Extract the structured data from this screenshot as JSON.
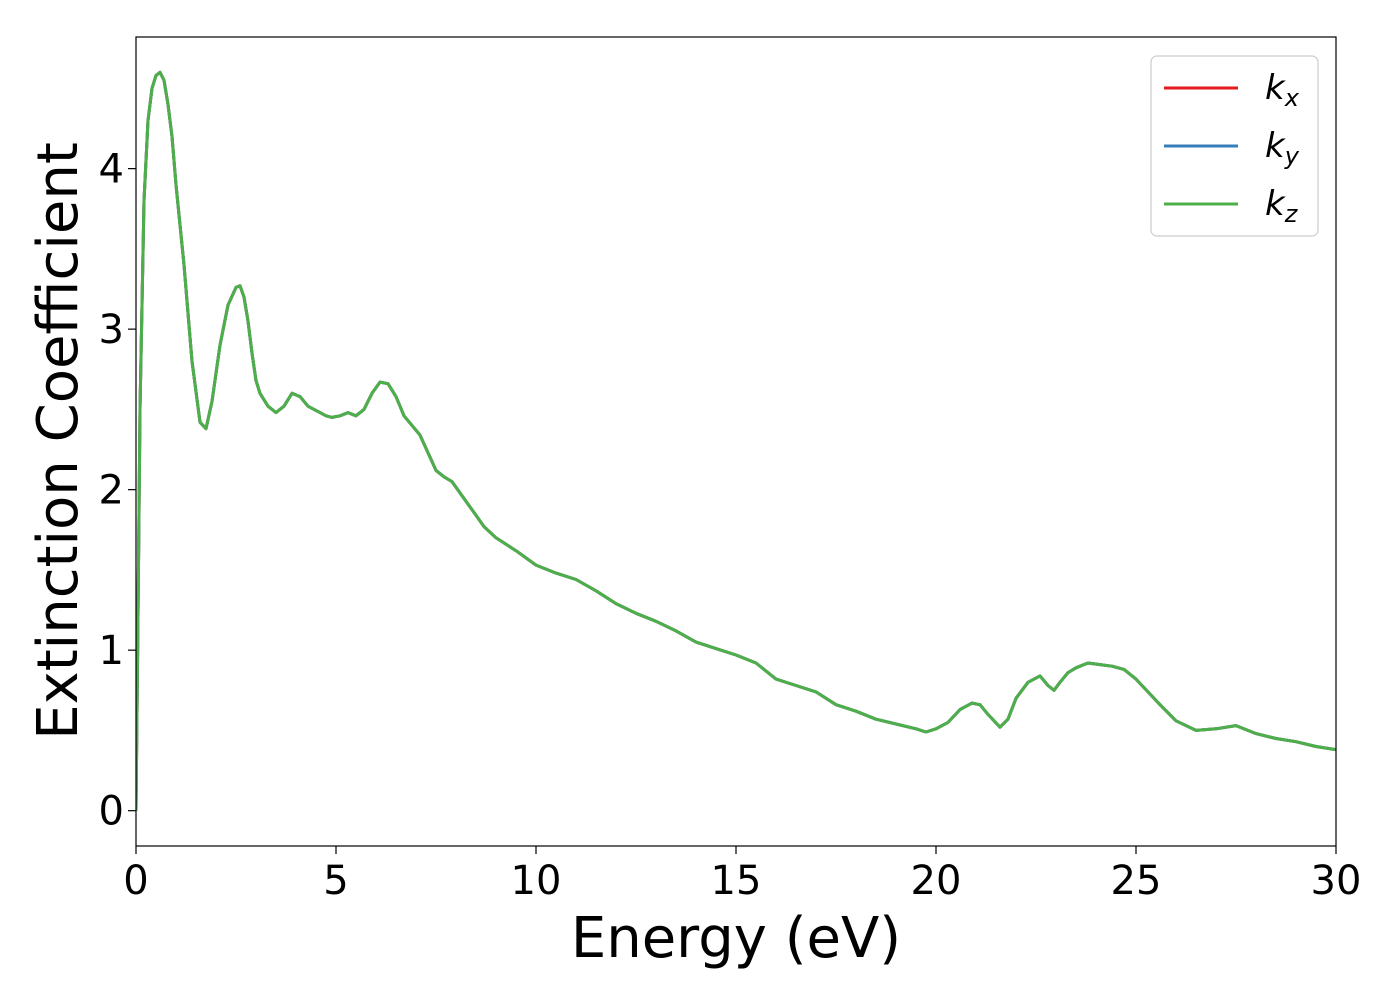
{
  "chart_data": {
    "type": "line",
    "title": "",
    "xlabel": "Energy (eV)",
    "ylabel": "Extinction Coefficient",
    "xlim": [
      0,
      30
    ],
    "ylim": [
      -0.22,
      4.82
    ],
    "xticks": [
      0,
      5,
      10,
      15,
      20,
      25,
      30
    ],
    "yticks": [
      0,
      1,
      2,
      3,
      4
    ],
    "grid": false,
    "legend_position": "top-right",
    "legend": [
      {
        "base": "k",
        "sub": "x"
      },
      {
        "base": "k",
        "sub": "y"
      },
      {
        "base": "k",
        "sub": "z"
      }
    ],
    "series": [
      {
        "name": "k_x",
        "color": "#e41a1c"
      },
      {
        "name": "k_y",
        "color": "#377eb8"
      },
      {
        "name": "k_z",
        "color": "#4daf4a"
      }
    ],
    "x": [
      0,
      0.05,
      0.1,
      0.2,
      0.3,
      0.4,
      0.5,
      0.6,
      0.7,
      0.8,
      0.9,
      1.0,
      1.2,
      1.4,
      1.6,
      1.75,
      1.9,
      2.1,
      2.3,
      2.5,
      2.6,
      2.7,
      2.8,
      2.9,
      3.0,
      3.1,
      3.2,
      3.3,
      3.5,
      3.7,
      3.9,
      4.1,
      4.3,
      4.45,
      4.6,
      4.75,
      4.9,
      5.1,
      5.3,
      5.5,
      5.7,
      5.9,
      6.1,
      6.3,
      6.5,
      6.7,
      6.9,
      7.1,
      7.3,
      7.5,
      7.7,
      7.9,
      8.1,
      8.3,
      8.5,
      8.7,
      9.0,
      9.5,
      10.0,
      10.5,
      11.0,
      11.5,
      12.0,
      12.5,
      13.0,
      13.5,
      14.0,
      14.5,
      15.0,
      15.5,
      16.0,
      16.5,
      17.0,
      17.5,
      18.0,
      18.5,
      19.0,
      19.5,
      19.75,
      20.0,
      20.3,
      20.6,
      20.9,
      21.1,
      21.3,
      21.6,
      21.8,
      22.0,
      22.3,
      22.6,
      22.8,
      22.95,
      23.1,
      23.3,
      23.5,
      23.8,
      24.1,
      24.4,
      24.7,
      25.0,
      25.3,
      25.6,
      26.0,
      26.5,
      27.0,
      27.5,
      28.0,
      28.5,
      29.0,
      29.5,
      30.0
    ],
    "y": [
      0,
      1.2,
      2.5,
      3.8,
      4.3,
      4.5,
      4.58,
      4.6,
      4.55,
      4.4,
      4.2,
      3.9,
      3.4,
      2.8,
      2.42,
      2.38,
      2.55,
      2.9,
      3.15,
      3.26,
      3.27,
      3.2,
      3.05,
      2.85,
      2.68,
      2.6,
      2.56,
      2.52,
      2.48,
      2.52,
      2.6,
      2.58,
      2.52,
      2.5,
      2.48,
      2.46,
      2.45,
      2.46,
      2.48,
      2.46,
      2.5,
      2.6,
      2.67,
      2.66,
      2.58,
      2.46,
      2.4,
      2.34,
      2.23,
      2.12,
      2.08,
      2.05,
      1.98,
      1.91,
      1.84,
      1.77,
      1.7,
      1.62,
      1.53,
      1.48,
      1.44,
      1.37,
      1.29,
      1.23,
      1.18,
      1.12,
      1.05,
      1.01,
      0.97,
      0.92,
      0.82,
      0.78,
      0.74,
      0.66,
      0.62,
      0.57,
      0.54,
      0.51,
      0.49,
      0.51,
      0.55,
      0.63,
      0.67,
      0.66,
      0.6,
      0.52,
      0.57,
      0.7,
      0.8,
      0.84,
      0.78,
      0.75,
      0.8,
      0.86,
      0.89,
      0.92,
      0.91,
      0.9,
      0.88,
      0.82,
      0.74,
      0.66,
      0.56,
      0.5,
      0.51,
      0.53,
      0.48,
      0.45,
      0.43,
      0.4,
      0.38
    ]
  }
}
